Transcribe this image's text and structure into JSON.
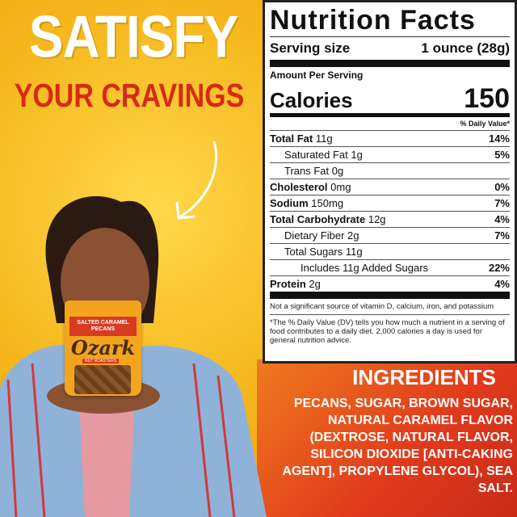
{
  "headline": {
    "line1": "SATISFY",
    "line2": "YOUR CRAVINGS"
  },
  "product": {
    "brand": "Ozark",
    "flavor": "SALTED CARAMEL PECANS",
    "tag": "NUT ROASTERS"
  },
  "nutrition": {
    "title": "Nutrition Facts",
    "serving_label": "Serving size",
    "serving_value": "1 ounce (28g)",
    "amount_per_serving": "Amount Per Serving",
    "calories_label": "Calories",
    "calories_value": "150",
    "dv_header": "% Daily Value*",
    "rows": [
      {
        "name": "Total Fat",
        "amount": "11g",
        "dv": "14%",
        "bold": true,
        "indent": 0
      },
      {
        "name": "Saturated Fat",
        "amount": "1g",
        "dv": "5%",
        "bold": false,
        "indent": 1
      },
      {
        "name": "Trans Fat",
        "amount": "0g",
        "dv": "",
        "bold": false,
        "indent": 1
      },
      {
        "name": "Cholesterol",
        "amount": "0mg",
        "dv": "0%",
        "bold": true,
        "indent": 0
      },
      {
        "name": "Sodium",
        "amount": "150mg",
        "dv": "7%",
        "bold": true,
        "indent": 0
      },
      {
        "name": "Total Carbohydrate",
        "amount": "12g",
        "dv": "4%",
        "bold": true,
        "indent": 0
      },
      {
        "name": "Dietary Fiber",
        "amount": "2g",
        "dv": "7%",
        "bold": false,
        "indent": 1
      },
      {
        "name": "Total Sugars",
        "amount": "11g",
        "dv": "",
        "bold": false,
        "indent": 1
      },
      {
        "name": "Includes 11g Added Sugars",
        "amount": "",
        "dv": "22%",
        "bold": false,
        "indent": 2
      },
      {
        "name": "Protein",
        "amount": "2g",
        "dv": "4%",
        "bold": true,
        "indent": 0
      }
    ],
    "note1": "Not a significant source of vitamin D, calcium, iron, and potassium",
    "note2": "*The % Daily Value (DV) tells you how much a nutrient in a serving of food contributes to a daily diet. 2,000 calories a day is used for general nutrition advice."
  },
  "ingredients": {
    "title": "INGREDIENTS",
    "text": "PECANS, SUGAR, BROWN SUGAR, NATURAL CARAMEL FLAVOR (DEXTROSE, NATURAL FLAVOR, SILICON DIOXIDE [ANTI-CAKING AGENT], PROPYLENE GLYCOL), SEA SALT."
  },
  "colors": {
    "background": "#f5b51a",
    "headline_red": "#d62a14",
    "ingredients_bg": "#e03a1c"
  }
}
